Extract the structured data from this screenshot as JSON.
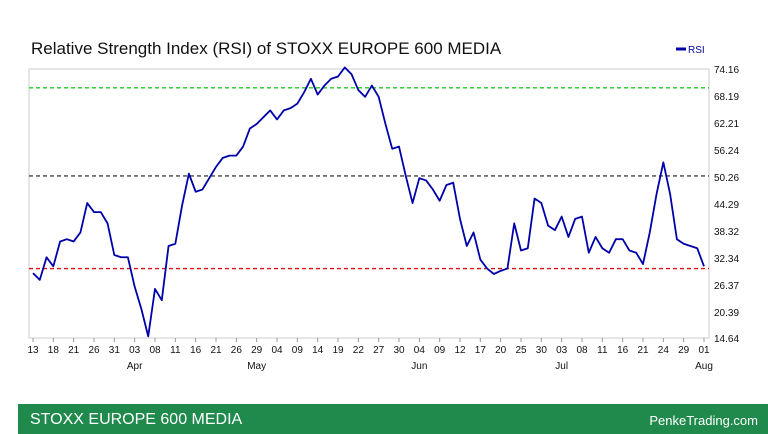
{
  "footer": {
    "left": "STOXX EUROPE 600 MEDIA",
    "right": "PenkeTrading.com"
  },
  "colors": {
    "line": "#0000aa",
    "upper_band": "#22cc22",
    "mid_band": "#444444",
    "lower_band": "#dd1111",
    "footer_bg": "#1f8a4c"
  },
  "chart_data": {
    "type": "line",
    "title": "Relative Strength Index (RSI) of STOXX EUROPE 600 MEDIA",
    "legend": "RSI",
    "legend_position": "top-right",
    "ylim": [
      14.64,
      74.16
    ],
    "y_ticks": [
      "74.16",
      "68.19",
      "62.21",
      "56.24",
      "50.26",
      "44.29",
      "38.32",
      "32.34",
      "26.37",
      "20.39",
      "14.64"
    ],
    "x_ticks": [
      "13",
      "18",
      "21",
      "26",
      "31",
      "03",
      "08",
      "11",
      "16",
      "21",
      "26",
      "29",
      "04",
      "09",
      "14",
      "19",
      "22",
      "27",
      "30",
      "04",
      "09",
      "12",
      "17",
      "20",
      "25",
      "30",
      "03",
      "08",
      "11",
      "16",
      "21",
      "24",
      "29",
      "01"
    ],
    "month_labels": [
      {
        "label": "Apr",
        "tick_index": 5
      },
      {
        "label": "May",
        "tick_index": 11
      },
      {
        "label": "Jun",
        "tick_index": 19
      },
      {
        "label": "Jul",
        "tick_index": 26
      },
      {
        "label": "Aug",
        "tick_index": 33
      }
    ],
    "reference_lines": [
      {
        "name": "overbought",
        "value": 70
      },
      {
        "name": "midline",
        "value": 50.5
      },
      {
        "name": "oversold",
        "value": 30
      }
    ],
    "series": [
      {
        "name": "RSI",
        "values": [
          29,
          27.5,
          32.5,
          30.5,
          36,
          36.5,
          36,
          38,
          44.5,
          42.5,
          42.5,
          40,
          33,
          32.5,
          32.5,
          26,
          21,
          15,
          25.5,
          23,
          35,
          35.5,
          44,
          51,
          47,
          47.5,
          50,
          52.5,
          54.5,
          55,
          55,
          57,
          61,
          62,
          63.5,
          65,
          63,
          65,
          65.5,
          66.5,
          69,
          72,
          68.5,
          70.5,
          72,
          72.5,
          74.5,
          73,
          69.5,
          68,
          70.5,
          68,
          62,
          56.5,
          57,
          50.5,
          44.5,
          50,
          49.5,
          47.5,
          45,
          48.5,
          49,
          41,
          35,
          38,
          32,
          30,
          28.8,
          29.5,
          30,
          40,
          34,
          34.5,
          45.5,
          44.5,
          39.5,
          38.5,
          41.5,
          37,
          41,
          41.5,
          33.5,
          37,
          34.5,
          33.5,
          36.5,
          36.5,
          34,
          33.5,
          31,
          38,
          46.5,
          53.5,
          46.5,
          36.5,
          35.5,
          35,
          34.5,
          30.5
        ]
      }
    ]
  }
}
